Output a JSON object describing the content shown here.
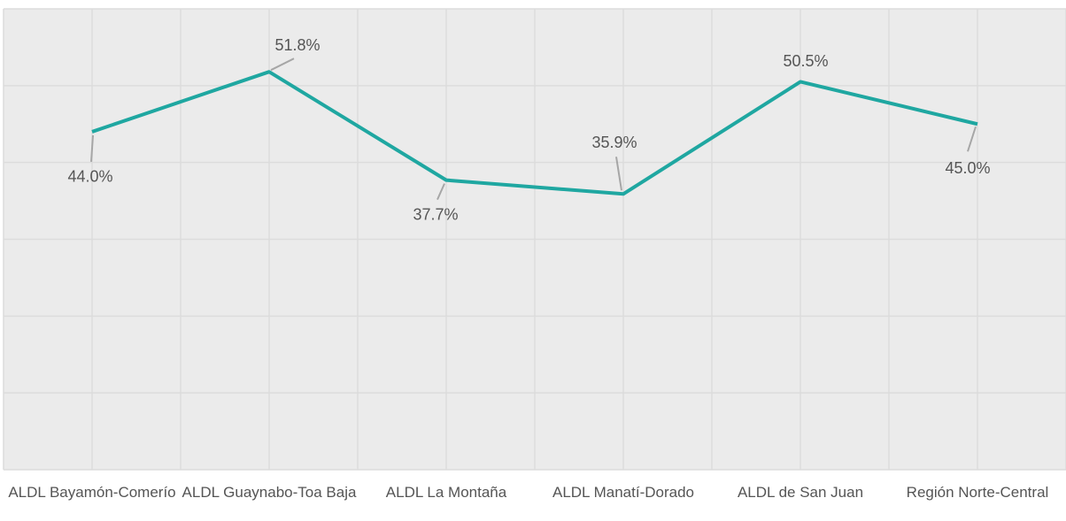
{
  "chart_data": {
    "type": "line",
    "categories": [
      "ALDL Bayamón-Comerío",
      "ALDL Guaynabo-Toa Baja",
      "ALDL La Montaña",
      "ALDL Manatí-Dorado",
      "ALDL de San Juan",
      "Región Norte-Central"
    ],
    "series": [
      {
        "color": "#1fa7a1",
        "values": [
          44.0,
          51.8,
          37.7,
          35.9,
          50.5,
          45.0
        ],
        "value_labels": [
          "44.0%",
          "51.8%",
          "37.7%",
          "35.9%",
          "50.5%",
          "45.0%"
        ]
      }
    ],
    "ylim": [
      0,
      60
    ],
    "yticks": [
      0,
      10,
      20,
      30,
      40,
      50,
      60
    ],
    "grid": true
  }
}
